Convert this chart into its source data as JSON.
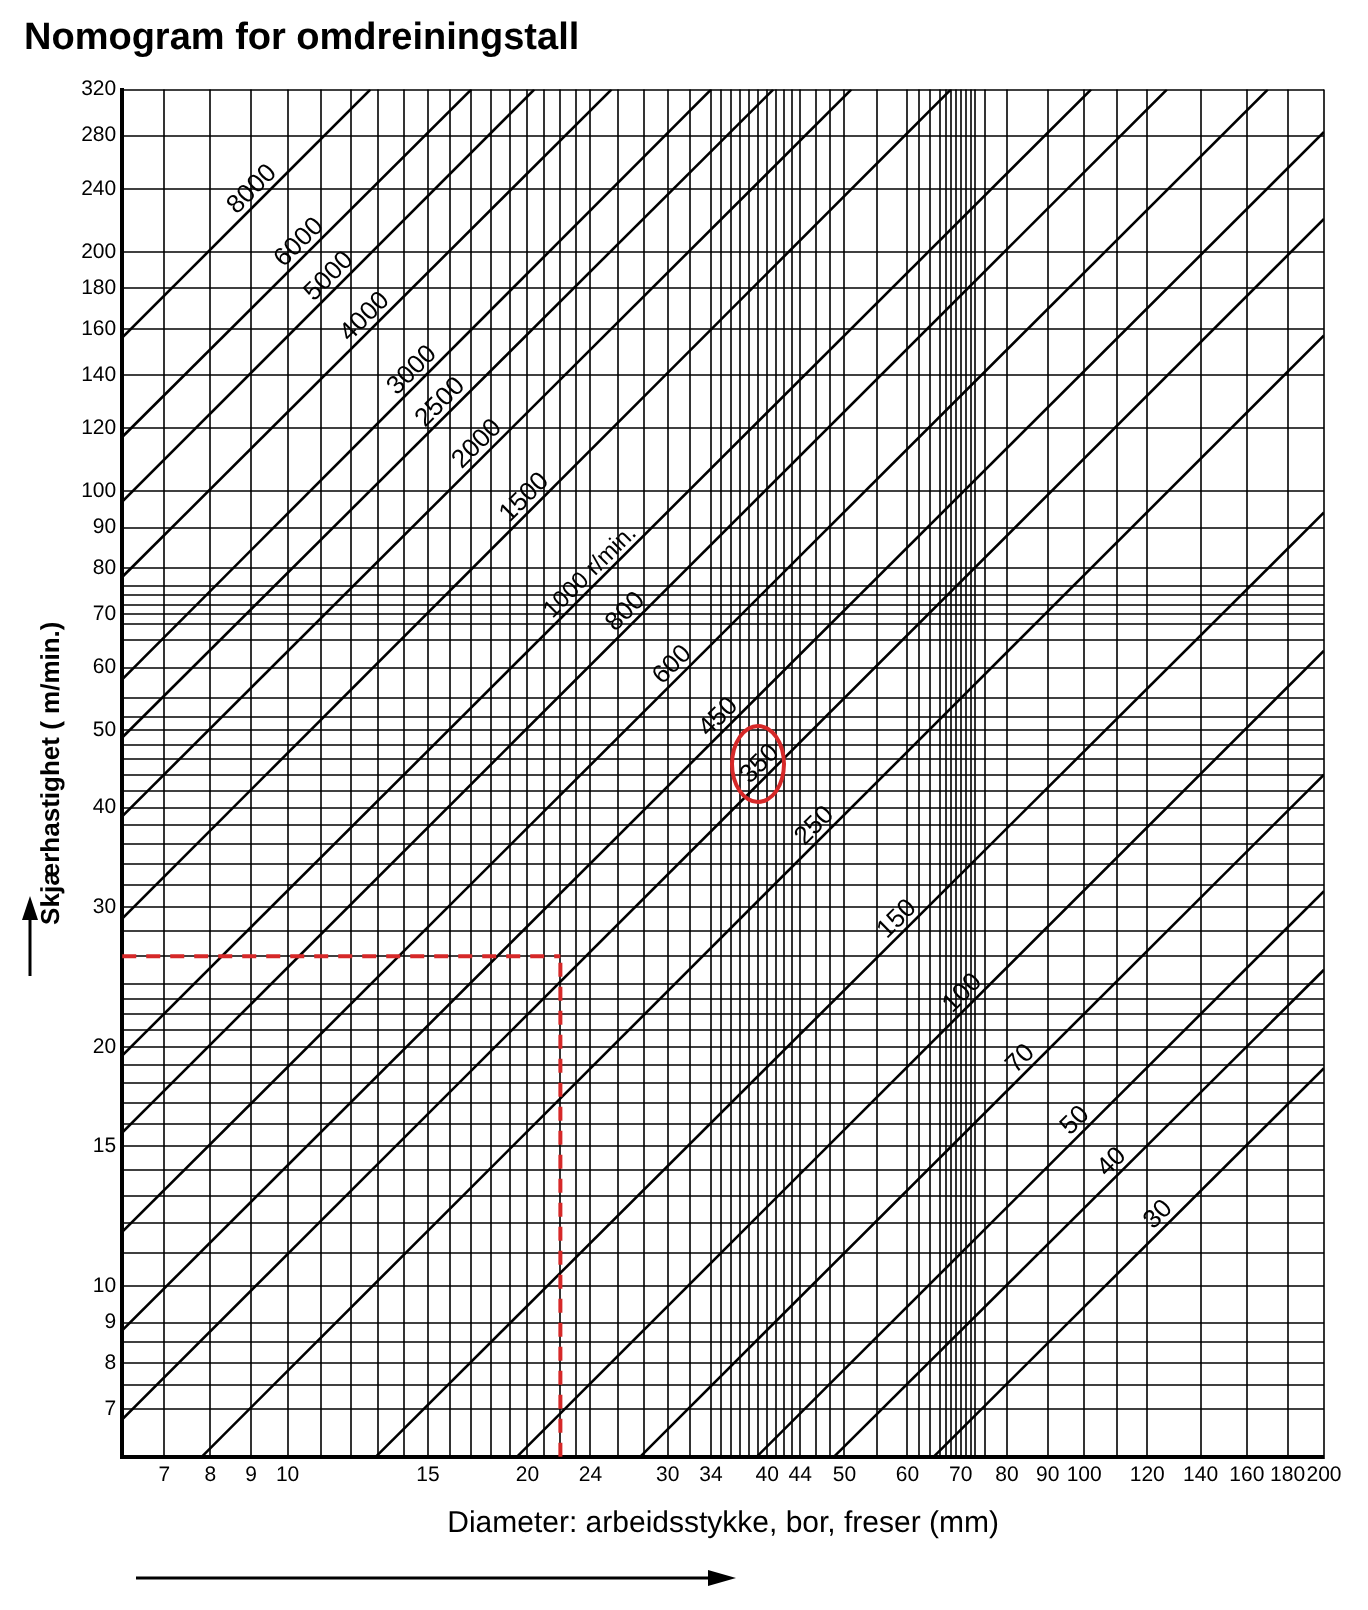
{
  "chart_data": {
    "type": "line",
    "title": "Nomogram for omdreiningstall",
    "xlabel": "Diameter: arbeidsstykke, bor, freser (mm)",
    "ylabel": "Skjærhastighet ( m/min.)",
    "log": "xy",
    "grid": true,
    "legend": false,
    "marker": "none",
    "line_style": "solid",
    "xlim": [
      6.2,
      200
    ],
    "ylim": [
      6.1,
      320
    ],
    "xticks": [
      7,
      8,
      9,
      10,
      {
        "value": 11,
        "label": null
      },
      {
        "value": 12,
        "label": null
      },
      {
        "value": 13,
        "label": null
      },
      {
        "value": 14,
        "label": null
      },
      15,
      {
        "value": 16,
        "label": null
      },
      {
        "value": 17,
        "label": null
      },
      {
        "value": 18,
        "label": null
      },
      {
        "value": 19,
        "label": null
      },
      20,
      {
        "value": 21,
        "label": null
      },
      {
        "value": 22,
        "label": null
      },
      {
        "value": 23,
        "label": null
      },
      24,
      {
        "value": 26,
        "label": null
      },
      {
        "value": 28,
        "label": null
      },
      30,
      {
        "value": 32,
        "label": null
      },
      34,
      {
        "value": 35,
        "label": null
      },
      {
        "value": 36,
        "label": null
      },
      {
        "value": 37,
        "label": null
      },
      {
        "value": 38,
        "label": null
      },
      {
        "value": 39,
        "label": null
      },
      40,
      {
        "value": 41,
        "label": null
      },
      {
        "value": 42,
        "label": null
      },
      {
        "value": 43,
        "label": null
      },
      44,
      {
        "value": 46,
        "label": null
      },
      {
        "value": 48,
        "label": null
      },
      50,
      {
        "value": 55,
        "label": null
      },
      60,
      {
        "value": 62,
        "label": null
      },
      {
        "value": 64,
        "label": null
      },
      {
        "value": 66,
        "label": null
      },
      {
        "value": 67,
        "label": null
      },
      {
        "value": 68,
        "label": null
      },
      {
        "value": 69,
        "label": null
      },
      70,
      {
        "value": 71,
        "label": null
      },
      {
        "value": 72,
        "label": null
      },
      {
        "value": 73,
        "label": null
      },
      {
        "value": 75,
        "label": null
      },
      80,
      90,
      100,
      {
        "value": 110,
        "label": null
      },
      120,
      140,
      160,
      180,
      200
    ],
    "yticks": [
      7,
      {
        "value": 7.5,
        "label": null
      },
      8,
      {
        "value": 8.5,
        "label": null
      },
      9,
      10,
      {
        "value": 11,
        "label": null
      },
      {
        "value": 12,
        "label": null
      },
      {
        "value": 13,
        "label": null
      },
      {
        "value": 14,
        "label": null
      },
      15,
      {
        "value": 16,
        "label": null
      },
      {
        "value": 17,
        "label": null
      },
      {
        "value": 18,
        "label": null
      },
      {
        "value": 19,
        "label": null
      },
      20,
      {
        "value": 21,
        "label": null
      },
      {
        "value": 22,
        "label": null
      },
      {
        "value": 23,
        "label": null
      },
      {
        "value": 24,
        "label": null
      },
      {
        "value": 26,
        "label": null
      },
      {
        "value": 28,
        "label": null
      },
      30,
      {
        "value": 32,
        "label": null
      },
      {
        "value": 34,
        "label": null
      },
      {
        "value": 36,
        "label": null
      },
      {
        "value": 38,
        "label": null
      },
      40,
      {
        "value": 42,
        "label": null
      },
      {
        "value": 44,
        "label": null
      },
      {
        "value": 46,
        "label": null
      },
      {
        "value": 48,
        "label": null
      },
      50,
      {
        "value": 52,
        "label": null
      },
      {
        "value": 55,
        "label": null
      },
      60,
      {
        "value": 65,
        "label": null
      },
      {
        "value": 68,
        "label": null
      },
      70,
      {
        "value": 72,
        "label": null
      },
      {
        "value": 74,
        "label": null
      },
      {
        "value": 76,
        "label": null
      },
      80,
      90,
      100,
      120,
      140,
      160,
      180,
      200,
      240,
      280,
      320
    ],
    "ref_lines": [
      {
        "axis": "x",
        "value": 22,
        "color": "#d62828",
        "line_style": "dashed"
      },
      {
        "axis": "y",
        "value": 26,
        "color": "#d62828",
        "line_style": "dashed"
      }
    ],
    "series": [
      {
        "name": "8000",
        "color": "#000000",
        "x": [
          6.2,
          12.7
        ],
        "values": [
          156,
          320
        ]
      },
      {
        "name": "6000",
        "color": "#000000",
        "x": [
          6.2,
          17
        ],
        "values": [
          117,
          320
        ]
      },
      {
        "name": "5000",
        "color": "#000000",
        "x": [
          6.2,
          20.4
        ],
        "values": [
          97,
          320
        ]
      },
      {
        "name": "4000",
        "color": "#000000",
        "x": [
          6.2,
          25.5
        ],
        "values": [
          78,
          320
        ]
      },
      {
        "name": "3000",
        "color": "#000000",
        "x": [
          6.2,
          34
        ],
        "values": [
          58,
          320
        ]
      },
      {
        "name": "2500",
        "color": "#000000",
        "x": [
          6.2,
          40.7
        ],
        "values": [
          49,
          320
        ]
      },
      {
        "name": "2000",
        "color": "#000000",
        "x": [
          6.2,
          51
        ],
        "values": [
          39,
          320
        ]
      },
      {
        "name": "1500",
        "color": "#000000",
        "x": [
          6.2,
          68
        ],
        "values": [
          29,
          320
        ]
      },
      {
        "name": "1000 r/min.",
        "color": "#000000",
        "x": [
          6.2,
          102
        ],
        "values": [
          19.5,
          320
        ]
      },
      {
        "name": "800",
        "color": "#000000",
        "x": [
          6.2,
          127
        ],
        "values": [
          15.6,
          320
        ]
      },
      {
        "name": "600",
        "color": "#000000",
        "x": [
          6.2,
          170
        ],
        "values": [
          11.7,
          320
        ]
      },
      {
        "name": "450",
        "color": "#000000",
        "x": [
          6.2,
          200
        ],
        "values": [
          8.8,
          283
        ]
      },
      {
        "name": "350",
        "color": "#000000",
        "x": [
          6.2,
          200
        ],
        "values": [
          6.8,
          220
        ]
      },
      {
        "name": "250",
        "color": "#000000",
        "x": [
          7.8,
          200
        ],
        "values": [
          6.1,
          157
        ]
      },
      {
        "name": "150",
        "color": "#000000",
        "x": [
          12.9,
          200
        ],
        "values": [
          6.1,
          94
        ]
      },
      {
        "name": "100",
        "color": "#000000",
        "x": [
          19.4,
          200
        ],
        "values": [
          6.1,
          63
        ]
      },
      {
        "name": "70",
        "color": "#000000",
        "x": [
          27.7,
          200
        ],
        "values": [
          6.1,
          44
        ]
      },
      {
        "name": "50",
        "color": "#000000",
        "x": [
          38.8,
          200
        ],
        "values": [
          6.1,
          31.4
        ]
      },
      {
        "name": "40",
        "color": "#000000",
        "x": [
          48.5,
          200
        ],
        "values": [
          6.1,
          25
        ]
      },
      {
        "name": "30",
        "color": "#000000",
        "x": [
          64.7,
          200
        ],
        "values": [
          6.1,
          18.8
        ]
      }
    ]
  }
}
